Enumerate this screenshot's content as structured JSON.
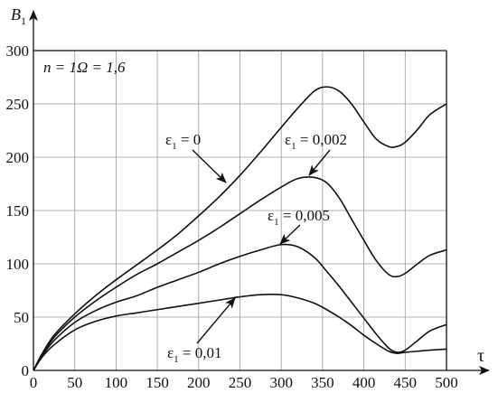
{
  "chart_data": {
    "type": "line",
    "xlabel": "τ",
    "ylabel": "B",
    "ylabel_sub": "1",
    "xlim": [
      0,
      500
    ],
    "ylim": [
      0,
      300
    ],
    "xticks": [
      0,
      50,
      100,
      150,
      200,
      250,
      300,
      350,
      400,
      450,
      500
    ],
    "yticks": [
      0,
      50,
      100,
      150,
      200,
      250,
      300
    ],
    "grid": true,
    "params_label": "n = 1Ω = 1,6",
    "series": [
      {
        "name": "ε1 = 0",
        "label_main": "ε",
        "label_sub": "1",
        "label_rest": " = 0",
        "x": [
          0,
          10,
          25,
          50,
          75,
          100,
          125,
          150,
          175,
          200,
          225,
          250,
          275,
          300,
          320,
          340,
          355,
          370,
          385,
          400,
          415,
          430,
          440,
          450,
          465,
          480,
          500
        ],
        "y": [
          0,
          15,
          33,
          53,
          70,
          85,
          99,
          113,
          128,
          145,
          163,
          183,
          205,
          228,
          246,
          262,
          266,
          262,
          250,
          233,
          217,
          210,
          210,
          214,
          226,
          240,
          250
        ]
      },
      {
        "name": "ε1 = 0,002",
        "label_main": "ε",
        "label_sub": "1",
        "label_rest": " = 0,002",
        "x": [
          0,
          10,
          25,
          50,
          75,
          100,
          125,
          150,
          175,
          200,
          225,
          250,
          275,
          300,
          320,
          340,
          355,
          370,
          385,
          400,
          415,
          430,
          440,
          450,
          465,
          480,
          500
        ],
        "y": [
          0,
          14,
          31,
          50,
          65,
          78,
          90,
          100,
          111,
          122,
          134,
          147,
          160,
          172,
          180,
          181,
          176,
          162,
          142,
          122,
          103,
          90,
          88,
          91,
          100,
          108,
          113
        ]
      },
      {
        "name": "ε1 = 0,005",
        "label_main": "ε",
        "label_sub": "1",
        "label_rest": " = 0,005",
        "x": [
          0,
          10,
          25,
          50,
          75,
          100,
          125,
          150,
          175,
          200,
          225,
          250,
          275,
          300,
          320,
          340,
          355,
          370,
          385,
          400,
          415,
          430,
          440,
          450,
          465,
          480,
          500
        ],
        "y": [
          0,
          13,
          28,
          45,
          56,
          64,
          70,
          78,
          85,
          92,
          100,
          107,
          113,
          118,
          116,
          106,
          93,
          79,
          64,
          49,
          34,
          21,
          17,
          19,
          28,
          37,
          43
        ]
      },
      {
        "name": "ε1 = 0,01",
        "label_main": "ε",
        "label_sub": "1",
        "label_rest": " = 0,01",
        "x": [
          0,
          10,
          25,
          50,
          75,
          100,
          125,
          150,
          175,
          200,
          225,
          250,
          275,
          300,
          320,
          340,
          355,
          370,
          385,
          400,
          415,
          430,
          440,
          450,
          465,
          480,
          500
        ],
        "y": [
          0,
          12,
          24,
          38,
          46,
          51,
          54,
          57,
          60,
          63,
          66,
          69,
          71,
          71,
          68,
          63,
          57,
          50,
          42,
          33,
          25,
          18,
          16,
          17,
          18,
          19,
          20
        ]
      }
    ]
  }
}
